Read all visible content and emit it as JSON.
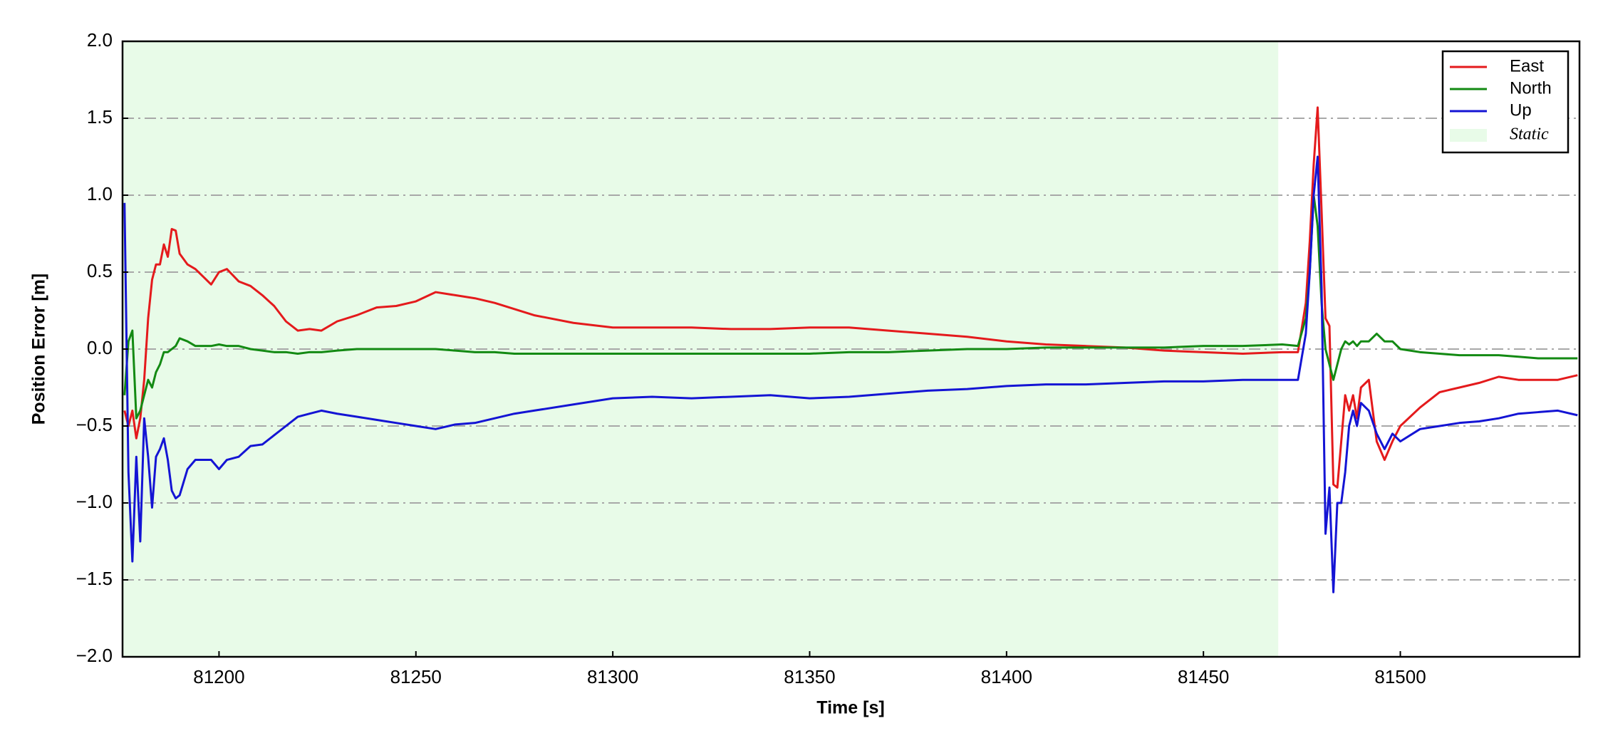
{
  "chart_data": {
    "type": "line",
    "xlabel": "Time [s]",
    "ylabel": "Position Error [m]",
    "xlim": [
      81175.5,
      81545.5
    ],
    "ylim": [
      -2,
      2
    ],
    "xticks": [
      81200,
      81250,
      81300,
      81350,
      81400,
      81450,
      81500
    ],
    "yticks": [
      {
        "value": -2,
        "label": "−2.0"
      },
      {
        "value": -1.5,
        "label": "−1.5"
      },
      {
        "value": -1,
        "label": "−1.0"
      },
      {
        "value": -0.5,
        "label": "−0.5"
      },
      {
        "value": 0,
        "label": "0.0"
      },
      0.5,
      {
        "value": 1,
        "label": "1.0"
      },
      1.5,
      {
        "value": 2,
        "label": "2.0"
      }
    ],
    "grid": true,
    "legend": "upper right",
    "shaded_region": {
      "name": "Static",
      "xlim": [
        81175.5,
        81469
      ],
      "color": "#e8fbe8"
    },
    "x": [
      81176,
      81177,
      81178,
      81179,
      81180,
      81181,
      81182,
      81183,
      81184,
      81185,
      81186,
      81187,
      81188,
      81189,
      81190,
      81192,
      81194,
      81196,
      81198,
      81200,
      81202,
      81205,
      81208,
      81211,
      81214,
      81217,
      81220,
      81223,
      81226,
      81230,
      81235,
      81240,
      81245,
      81250,
      81255,
      81260,
      81265,
      81270,
      81275,
      81280,
      81290,
      81300,
      81310,
      81320,
      81330,
      81340,
      81350,
      81360,
      81370,
      81380,
      81390,
      81400,
      81410,
      81420,
      81430,
      81440,
      81450,
      81460,
      81470,
      81474,
      81476,
      81477,
      81478,
      81479,
      81480,
      81481,
      81482,
      81483,
      81484,
      81485,
      81486,
      81487,
      81488,
      81489,
      81490,
      81492,
      81494,
      81496,
      81498,
      81500,
      81505,
      81510,
      81515,
      81520,
      81525,
      81530,
      81535,
      81540,
      81545
    ],
    "series": [
      {
        "name": "East",
        "color": "#e41a1c",
        "values": [
          -0.4,
          -0.5,
          -0.4,
          -0.58,
          -0.45,
          -0.2,
          0.2,
          0.45,
          0.55,
          0.55,
          0.68,
          0.6,
          0.78,
          0.77,
          0.62,
          0.55,
          0.52,
          0.47,
          0.42,
          0.5,
          0.52,
          0.44,
          0.41,
          0.35,
          0.28,
          0.18,
          0.12,
          0.13,
          0.12,
          0.18,
          0.22,
          0.27,
          0.28,
          0.31,
          0.37,
          0.35,
          0.33,
          0.3,
          0.26,
          0.22,
          0.17,
          0.14,
          0.14,
          0.14,
          0.13,
          0.13,
          0.14,
          0.14,
          0.12,
          0.1,
          0.08,
          0.05,
          0.03,
          0.02,
          0.01,
          -0.01,
          -0.02,
          -0.03,
          -0.02,
          -0.02,
          0.3,
          0.7,
          1.2,
          1.57,
          0.9,
          0.2,
          0.15,
          -0.88,
          -0.9,
          -0.6,
          -0.3,
          -0.4,
          -0.3,
          -0.45,
          -0.25,
          -0.2,
          -0.6,
          -0.72,
          -0.6,
          -0.5,
          -0.38,
          -0.28,
          -0.25,
          -0.22,
          -0.18,
          -0.2,
          -0.2,
          -0.2,
          -0.17
        ]
      },
      {
        "name": "North",
        "color": "#138a13",
        "values": [
          -0.3,
          0.05,
          0.12,
          -0.45,
          -0.4,
          -0.3,
          -0.2,
          -0.25,
          -0.15,
          -0.1,
          -0.02,
          -0.02,
          0,
          0.02,
          0.07,
          0.05,
          0.02,
          0.02,
          0.02,
          0.03,
          0.02,
          0.02,
          0,
          -0.01,
          -0.02,
          -0.02,
          -0.03,
          -0.02,
          -0.02,
          -0.01,
          0,
          0,
          0,
          0,
          0,
          -0.01,
          -0.02,
          -0.02,
          -0.03,
          -0.03,
          -0.03,
          -0.03,
          -0.03,
          -0.03,
          -0.03,
          -0.03,
          -0.03,
          -0.02,
          -0.02,
          -0.01,
          0,
          0,
          0.01,
          0.01,
          0.01,
          0.01,
          0.02,
          0.02,
          0.03,
          0.02,
          0.2,
          0.5,
          1.0,
          0.8,
          0.3,
          0,
          -0.1,
          -0.2,
          -0.1,
          0,
          0.05,
          0.03,
          0.05,
          0.02,
          0.05,
          0.05,
          0.1,
          0.05,
          0.05,
          0,
          -0.02,
          -0.03,
          -0.04,
          -0.04,
          -0.04,
          -0.05,
          -0.06,
          -0.06,
          -0.06
        ]
      },
      {
        "name": "Up",
        "color": "#1414d4",
        "values": [
          0.95,
          -0.8,
          -1.38,
          -0.7,
          -1.25,
          -0.45,
          -0.7,
          -1.03,
          -0.7,
          -0.65,
          -0.58,
          -0.72,
          -0.92,
          -0.97,
          -0.95,
          -0.78,
          -0.72,
          -0.72,
          -0.72,
          -0.78,
          -0.72,
          -0.7,
          -0.63,
          -0.62,
          -0.56,
          -0.5,
          -0.44,
          -0.42,
          -0.4,
          -0.42,
          -0.44,
          -0.46,
          -0.48,
          -0.5,
          -0.52,
          -0.49,
          -0.48,
          -0.45,
          -0.42,
          -0.4,
          -0.36,
          -0.32,
          -0.31,
          -0.32,
          -0.31,
          -0.3,
          -0.32,
          -0.31,
          -0.29,
          -0.27,
          -0.26,
          -0.24,
          -0.23,
          -0.23,
          -0.22,
          -0.21,
          -0.21,
          -0.2,
          -0.2,
          -0.2,
          0.1,
          0.5,
          1.0,
          1.25,
          0.4,
          -1.2,
          -0.9,
          -1.58,
          -1.0,
          -1.0,
          -0.8,
          -0.5,
          -0.4,
          -0.5,
          -0.35,
          -0.4,
          -0.55,
          -0.65,
          -0.55,
          -0.6,
          -0.52,
          -0.5,
          -0.48,
          -0.47,
          -0.45,
          -0.42,
          -0.41,
          -0.4,
          -0.43
        ]
      }
    ]
  }
}
